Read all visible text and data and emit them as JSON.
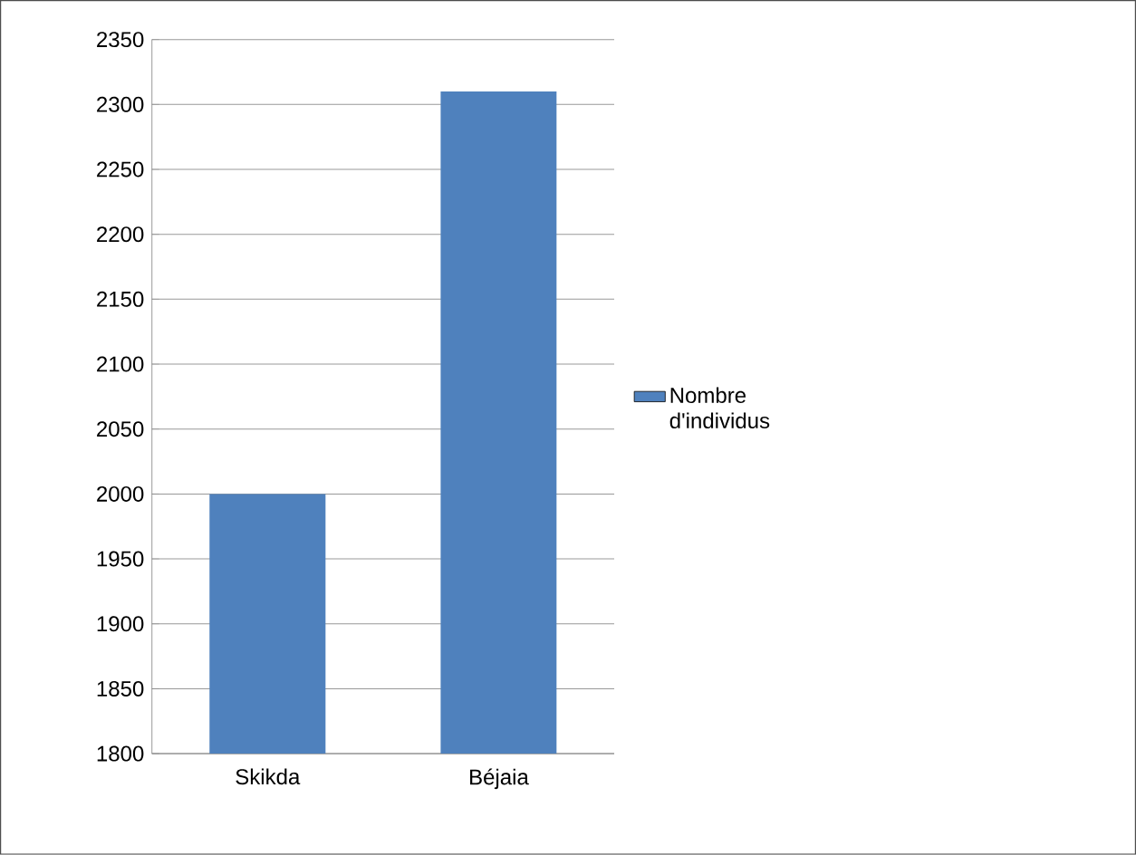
{
  "chart_data": {
    "type": "bar",
    "categories": [
      "Skikda",
      "Béjaia"
    ],
    "series": [
      {
        "name": "Nombre d'individus",
        "color": "#4f81bd",
        "values": [
          2000,
          2310
        ]
      }
    ],
    "ylim": [
      1800,
      2350
    ],
    "yticks": [
      1800,
      1850,
      1900,
      1950,
      2000,
      2050,
      2100,
      2150,
      2200,
      2250,
      2300,
      2350
    ],
    "grid": "y",
    "legend": "right"
  }
}
